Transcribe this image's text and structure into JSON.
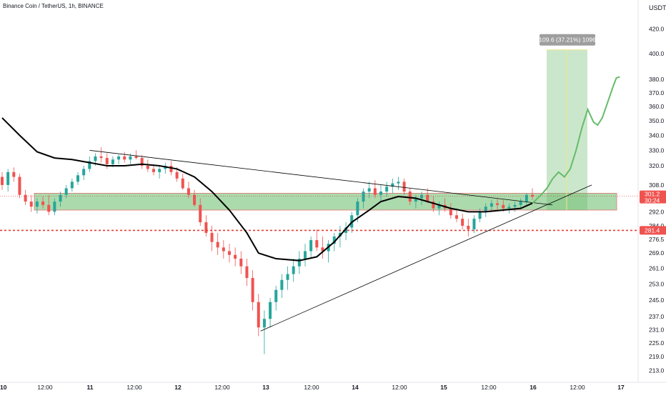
{
  "header": {
    "symbol": "Binance Coin / TetherUS, 1h, BINANCE",
    "currency": "USDT"
  },
  "chart_data": {
    "type": "candlestick",
    "y_scale": "log",
    "ylim": [
      211,
      445
    ],
    "y_ticks": [
      213.0,
      219.0,
      225.0,
      231.0,
      237.0,
      245.0,
      253.0,
      261.0,
      269.0,
      276.5,
      284.0,
      292.0,
      308.0,
      320.0,
      330.0,
      340.0,
      350.0,
      360.0,
      370.0,
      380.0,
      400.0,
      420.0
    ],
    "x_ticks": [
      "10",
      "12:00",
      "11",
      "12:00",
      "12",
      "12:00",
      "13",
      "12:00",
      "14",
      "12:00",
      "15",
      "12:00",
      "16",
      "12:00",
      "17"
    ],
    "price_labels": {
      "last_price": "301.2",
      "countdown": "30:24",
      "red_level": "281.4"
    },
    "levels": {
      "red_line": 281.4,
      "last_price_line": 301.2,
      "support_zone": [
        293,
        303
      ]
    },
    "target_box": {
      "label": "109.6 (37.21%) 1096",
      "from": 293,
      "to": 403
    },
    "colors": {
      "up": "#26a69a",
      "down": "#ef5350",
      "zone_fill": "#66bb6a",
      "zone_border": "#e57373",
      "projection": "#66bb6a",
      "ma_line": "#000000",
      "trend_line": "#000000",
      "red_line": "#e53935",
      "label_bg_red": "#ef5350",
      "target_label_bg": "#9e9e9e"
    },
    "candles": [
      [
        313,
        316,
        305,
        308
      ],
      [
        308,
        318,
        304,
        316
      ],
      [
        316,
        319,
        310,
        313
      ],
      [
        313,
        315,
        300,
        302
      ],
      [
        302,
        305,
        296,
        298
      ],
      [
        298,
        302,
        292,
        295
      ],
      [
        295,
        300,
        291,
        298
      ],
      [
        298,
        301,
        294,
        296
      ],
      [
        296,
        302,
        290,
        292
      ],
      [
        292,
        300,
        290,
        298
      ],
      [
        298,
        304,
        295,
        302
      ],
      [
        302,
        308,
        300,
        306
      ],
      [
        306,
        312,
        304,
        310
      ],
      [
        310,
        316,
        308,
        314
      ],
      [
        314,
        320,
        311,
        318
      ],
      [
        318,
        326,
        316,
        323
      ],
      [
        323,
        328,
        320,
        326
      ],
      [
        326,
        332,
        322,
        325
      ],
      [
        325,
        328,
        318,
        321
      ],
      [
        321,
        326,
        319,
        324
      ],
      [
        324,
        327,
        321,
        326
      ],
      [
        326,
        329,
        322,
        324
      ],
      [
        324,
        328,
        321,
        326
      ],
      [
        326,
        330,
        324,
        325
      ],
      [
        325,
        327,
        318,
        320
      ],
      [
        320,
        324,
        316,
        318
      ],
      [
        318,
        321,
        314,
        316
      ],
      [
        316,
        320,
        312,
        318
      ],
      [
        318,
        322,
        315,
        320
      ],
      [
        320,
        323,
        314,
        316
      ],
      [
        316,
        319,
        310,
        312
      ],
      [
        312,
        315,
        305,
        306
      ],
      [
        306,
        310,
        300,
        302
      ],
      [
        302,
        305,
        295,
        296
      ],
      [
        296,
        300,
        284,
        286
      ],
      [
        286,
        290,
        278,
        280
      ],
      [
        280,
        284,
        270,
        275
      ],
      [
        275,
        280,
        268,
        272
      ],
      [
        272,
        276,
        266,
        270
      ],
      [
        270,
        274,
        264,
        268
      ],
      [
        268,
        272,
        262,
        266
      ],
      [
        266,
        270,
        258,
        262
      ],
      [
        262,
        266,
        252,
        256
      ],
      [
        256,
        260,
        240,
        244
      ],
      [
        244,
        248,
        228,
        232
      ],
      [
        232,
        240,
        220,
        236
      ],
      [
        236,
        246,
        232,
        244
      ],
      [
        244,
        252,
        240,
        250
      ],
      [
        250,
        258,
        246,
        255
      ],
      [
        255,
        262,
        250,
        258
      ],
      [
        258,
        266,
        254,
        262
      ],
      [
        262,
        270,
        258,
        266
      ],
      [
        266,
        274,
        262,
        270
      ],
      [
        270,
        278,
        266,
        276
      ],
      [
        276,
        282,
        270,
        272
      ],
      [
        272,
        278,
        266,
        270
      ],
      [
        270,
        276,
        264,
        274
      ],
      [
        274,
        280,
        270,
        278
      ],
      [
        278,
        284,
        272,
        280
      ],
      [
        280,
        286,
        276,
        283
      ],
      [
        283,
        292,
        280,
        290
      ],
      [
        290,
        300,
        286,
        298
      ],
      [
        298,
        306,
        294,
        304
      ],
      [
        304,
        310,
        300,
        306
      ],
      [
        306,
        311,
        300,
        302
      ],
      [
        302,
        308,
        298,
        304
      ],
      [
        304,
        310,
        301,
        307
      ],
      [
        307,
        312,
        303,
        309
      ],
      [
        309,
        313,
        305,
        310
      ],
      [
        310,
        312,
        302,
        304
      ],
      [
        304,
        306,
        296,
        298
      ],
      [
        298,
        302,
        294,
        300
      ],
      [
        300,
        304,
        296,
        302
      ],
      [
        302,
        306,
        297,
        298
      ],
      [
        298,
        301,
        292,
        294
      ],
      [
        294,
        298,
        290,
        296
      ],
      [
        296,
        300,
        292,
        294
      ],
      [
        294,
        297,
        288,
        290
      ],
      [
        290,
        294,
        286,
        288
      ],
      [
        288,
        291,
        282,
        284
      ],
      [
        284,
        288,
        278,
        282
      ],
      [
        282,
        290,
        280,
        288
      ],
      [
        288,
        294,
        286,
        292
      ],
      [
        292,
        297,
        289,
        295
      ],
      [
        295,
        299,
        292,
        297
      ],
      [
        297,
        300,
        293,
        296
      ],
      [
        296,
        299,
        292,
        294
      ],
      [
        294,
        297,
        291,
        295
      ],
      [
        295,
        298,
        292,
        296
      ],
      [
        296,
        300,
        294,
        298
      ],
      [
        298,
        303,
        296,
        302
      ],
      [
        302,
        306,
        299,
        301
      ]
    ],
    "ma_curve": [
      [
        352,
        0
      ],
      [
        340,
        3
      ],
      [
        329,
        6
      ],
      [
        325,
        9
      ],
      [
        324,
        12
      ],
      [
        322,
        15
      ],
      [
        320,
        18
      ],
      [
        320,
        21
      ],
      [
        321,
        24
      ],
      [
        320,
        27
      ],
      [
        318,
        30
      ],
      [
        313,
        33
      ],
      [
        304,
        36
      ],
      [
        293,
        39
      ],
      [
        280,
        42
      ],
      [
        269,
        44
      ],
      [
        266,
        47
      ],
      [
        265,
        51
      ],
      [
        267,
        54
      ],
      [
        275,
        57
      ],
      [
        286,
        60
      ],
      [
        293,
        63
      ],
      [
        298,
        65
      ],
      [
        301,
        68
      ],
      [
        300,
        71
      ],
      [
        297,
        74
      ],
      [
        294,
        77
      ],
      [
        292,
        80
      ],
      [
        292,
        83
      ],
      [
        293,
        86
      ],
      [
        294,
        89
      ],
      [
        297,
        91
      ]
    ],
    "projection": [
      [
        297,
        91
      ],
      [
        302,
        92.5
      ],
      [
        306,
        93.5
      ],
      [
        312,
        94.5
      ],
      [
        316,
        95.5
      ],
      [
        313,
        96.5
      ],
      [
        318,
        97.5
      ],
      [
        330,
        98.5
      ],
      [
        345,
        99.5
      ],
      [
        358,
        100.5
      ],
      [
        349,
        101.5
      ],
      [
        347,
        102.2
      ],
      [
        352,
        103
      ],
      [
        364,
        104
      ],
      [
        374,
        104.8
      ],
      [
        381,
        105.4
      ],
      [
        382,
        106
      ]
    ],
    "trend_upper": [
      [
        330,
        15
      ],
      [
        296,
        92
      ]
    ],
    "trend_lower": [
      [
        231,
        44
      ],
      [
        303,
        93
      ]
    ],
    "target_x_range": [
      93,
      99.5
    ],
    "zone_x_range": [
      0,
      106
    ],
    "x_span": 108
  }
}
